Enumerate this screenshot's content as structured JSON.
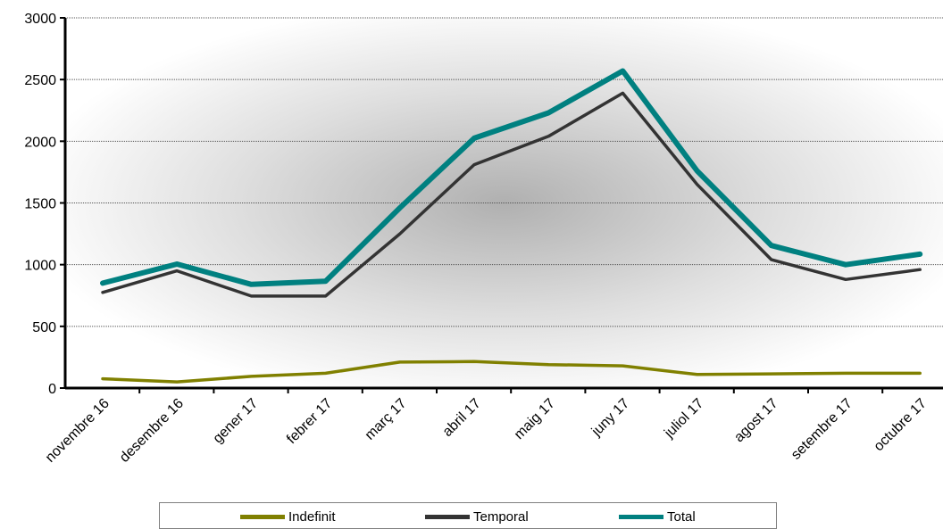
{
  "chart_data": {
    "type": "line",
    "categories": [
      "novembre 16",
      "desembre 16",
      "gener 17",
      "febrer 17",
      "març 17",
      "abril 17",
      "maig 17",
      "juny 17",
      "juliol 17",
      "agost 17",
      "setembre 17",
      "octubre 17"
    ],
    "series": [
      {
        "name": "Indefinit",
        "color": "#808000",
        "values": [
          75,
          50,
          95,
          120,
          210,
          215,
          190,
          180,
          110,
          115,
          120,
          120
        ]
      },
      {
        "name": "Temporal",
        "color": "#333333",
        "values": [
          775,
          950,
          745,
          745,
          1250,
          1810,
          2040,
          2390,
          1650,
          1040,
          880,
          960
        ]
      },
      {
        "name": "Total",
        "color": "#008080",
        "values": [
          850,
          1005,
          840,
          865,
          1460,
          2025,
          2230,
          2570,
          1760,
          1155,
          1000,
          1085
        ]
      }
    ],
    "ylim": [
      0,
      3000
    ],
    "yticks": [
      0,
      500,
      1000,
      1500,
      2000,
      2500,
      3000
    ],
    "grid": true,
    "legend_position": "bottom",
    "title": "",
    "xlabel": "",
    "ylabel": ""
  },
  "legend": [
    {
      "label": "Indefinit",
      "color": "#808000"
    },
    {
      "label": "Temporal",
      "color": "#333333"
    },
    {
      "label": "Total",
      "color": "#008080"
    }
  ]
}
